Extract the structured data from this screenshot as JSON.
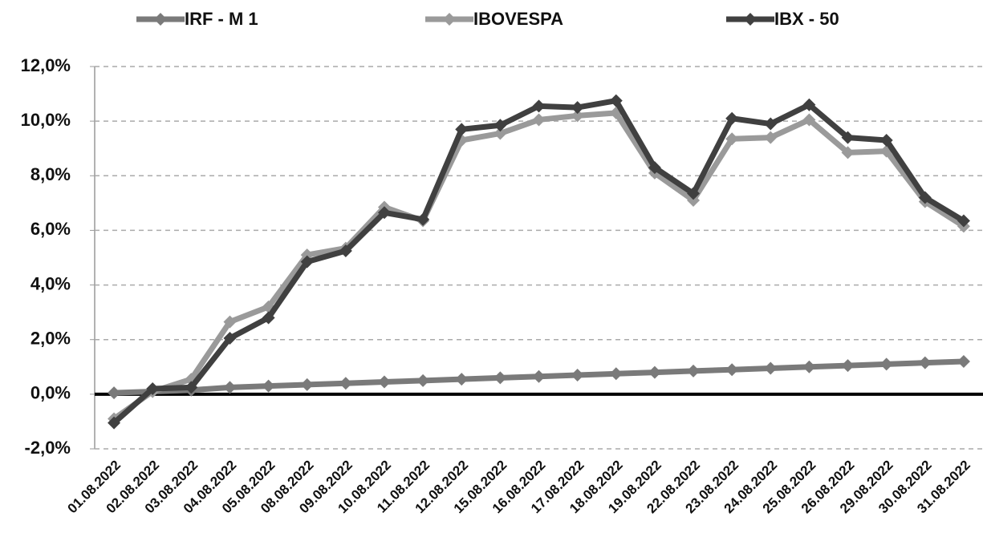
{
  "chart_data": {
    "type": "line",
    "categories": [
      "01.08.2022",
      "02.08.2022",
      "03.08.2022",
      "04.08.2022",
      "05.08.2022",
      "08.08.2022",
      "09.08.2022",
      "10.08.2022",
      "11.08.2022",
      "12.08.2022",
      "15.08.2022",
      "16.08.2022",
      "17.08.2022",
      "18.08.2022",
      "19.08.2022",
      "22.08.2022",
      "23.08.2022",
      "24.08.2022",
      "25.08.2022",
      "26.08.2022",
      "29.08.2022",
      "30.08.2022",
      "31.08.2022"
    ],
    "series": [
      {
        "name": "IRF - M 1",
        "color": "#7a7a7a",
        "values": [
          0.05,
          0.1,
          0.15,
          0.25,
          0.3,
          0.35,
          0.4,
          0.45,
          0.5,
          0.55,
          0.6,
          0.65,
          0.7,
          0.75,
          0.8,
          0.85,
          0.9,
          0.95,
          1.0,
          1.05,
          1.1,
          1.15,
          1.2
        ]
      },
      {
        "name": "IBOVESPA",
        "color": "#9a9a9a",
        "values": [
          -0.9,
          0.1,
          0.55,
          2.65,
          3.2,
          5.1,
          5.35,
          6.85,
          6.35,
          9.3,
          9.55,
          10.05,
          10.2,
          10.3,
          8.1,
          7.1,
          9.35,
          9.4,
          10.05,
          8.85,
          8.9,
          7.05,
          6.15
        ]
      },
      {
        "name": "IBX - 50",
        "color": "#404040",
        "values": [
          -1.05,
          0.2,
          0.25,
          2.05,
          2.8,
          4.85,
          5.25,
          6.65,
          6.4,
          9.7,
          9.85,
          10.55,
          10.5,
          10.75,
          8.3,
          7.35,
          10.1,
          9.9,
          10.6,
          9.4,
          9.3,
          7.2,
          6.35
        ]
      }
    ],
    "ylim": [
      -2,
      12
    ],
    "yticks": [
      {
        "value": -2,
        "label": "-2,0%"
      },
      {
        "value": 0,
        "label": "0,0%"
      },
      {
        "value": 2,
        "label": "2,0%"
      },
      {
        "value": 4,
        "label": "4,0%"
      },
      {
        "value": 6,
        "label": "6,0%"
      },
      {
        "value": 8,
        "label": "8,0%"
      },
      {
        "value": 10,
        "label": "10,0%"
      },
      {
        "value": 12,
        "label": "12,0%"
      }
    ],
    "grid": true,
    "legend": "top"
  }
}
